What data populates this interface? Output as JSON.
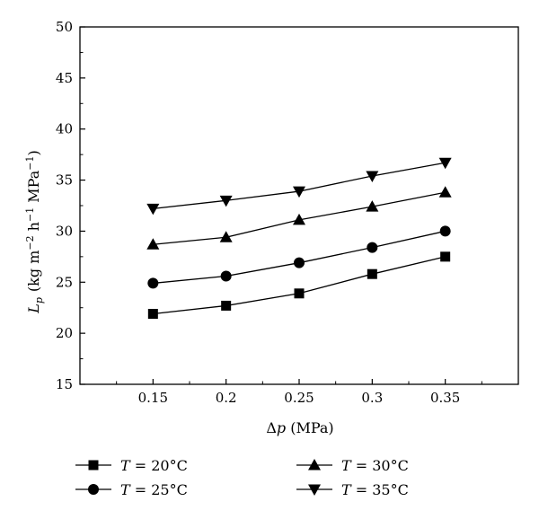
{
  "chart_data": {
    "type": "line",
    "x": [
      0.15,
      0.2,
      0.25,
      0.3,
      0.35
    ],
    "x_tick_labels": [
      "0.15",
      "0.2",
      "0.25",
      "0.3",
      "0.35"
    ],
    "y_ticks": [
      15,
      20,
      25,
      30,
      35,
      40,
      45,
      50
    ],
    "ylim": [
      15,
      50
    ],
    "xlim": [
      0.1,
      0.4
    ],
    "xlabel": {
      "symbol": "Δ",
      "var": "p",
      "unit": " (MPa)"
    },
    "ylabel": {
      "var": "L",
      "sub": "p",
      "unit_parts": [
        "(kg m",
        "−2",
        " h",
        "−1",
        " MPa",
        "−1",
        ")"
      ]
    },
    "grid": false,
    "legend_position": "bottom",
    "series": [
      {
        "name": "T = 20°C",
        "var": "T",
        "rest": " = 20°C",
        "marker": "square",
        "values": [
          21.9,
          22.7,
          23.9,
          25.8,
          27.5
        ]
      },
      {
        "name": "T = 25°C",
        "var": "T",
        "rest": " = 25°C",
        "marker": "circle",
        "values": [
          24.9,
          25.6,
          26.9,
          28.4,
          30.0
        ]
      },
      {
        "name": "T = 30°C",
        "var": "T",
        "rest": " = 30°C",
        "marker": "triangle-up",
        "values": [
          28.7,
          29.4,
          31.1,
          32.4,
          33.8
        ]
      },
      {
        "name": "T = 35°C",
        "var": "T",
        "rest": " = 35°C",
        "marker": "triangle-down",
        "values": [
          32.2,
          33.0,
          33.9,
          35.4,
          36.7
        ]
      }
    ],
    "colors": {
      "line": "#000000",
      "marker": "#000000"
    }
  }
}
